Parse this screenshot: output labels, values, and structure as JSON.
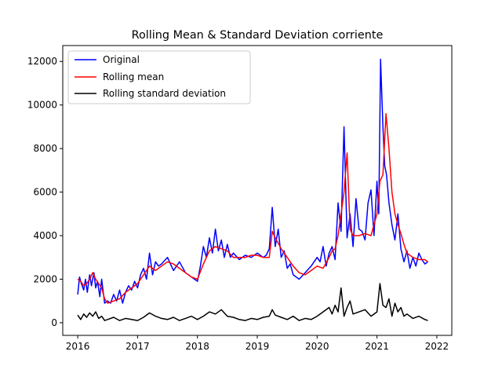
{
  "chart_data": {
    "type": "line",
    "title": "Rolling Mean & Standard Deviation corriente",
    "xlabel": "",
    "ylabel": "",
    "xlim": [
      2015.75,
      2022.25
    ],
    "ylim": [
      -580,
      12730
    ],
    "x_ticks": [
      2016,
      2017,
      2018,
      2019,
      2020,
      2021,
      2022
    ],
    "x_tick_labels": [
      "2016",
      "2017",
      "2018",
      "2019",
      "2020",
      "2021",
      "2022"
    ],
    "y_ticks": [
      0,
      2000,
      4000,
      6000,
      8000,
      10000,
      12000
    ],
    "y_tick_labels": [
      "0",
      "2000",
      "4000",
      "6000",
      "8000",
      "10000",
      "12000"
    ],
    "grid": false,
    "legend_position": "upper-left",
    "colors": {
      "original": "#0000ff",
      "rolling_mean": "#ff0000",
      "rolling_std": "#000000"
    },
    "series": [
      {
        "name": "Original",
        "color": "#0000ff",
        "x": [
          2016.0,
          2016.03,
          2016.06,
          2016.1,
          2016.13,
          2016.16,
          2016.2,
          2016.23,
          2016.27,
          2016.3,
          2016.33,
          2016.37,
          2016.4,
          2016.45,
          2016.5,
          2016.55,
          2016.6,
          2016.65,
          2016.7,
          2016.75,
          2016.8,
          2016.85,
          2016.9,
          2016.95,
          2017.0,
          2017.05,
          2017.1,
          2017.15,
          2017.2,
          2017.25,
          2017.3,
          2017.35,
          2017.4,
          2017.5,
          2017.6,
          2017.7,
          2017.8,
          2017.9,
          2018.0,
          2018.05,
          2018.1,
          2018.15,
          2018.2,
          2018.25,
          2018.3,
          2018.35,
          2018.4,
          2018.45,
          2018.5,
          2018.55,
          2018.6,
          2018.7,
          2018.8,
          2018.9,
          2019.0,
          2019.1,
          2019.15,
          2019.2,
          2019.25,
          2019.3,
          2019.35,
          2019.4,
          2019.45,
          2019.5,
          2019.55,
          2019.6,
          2019.7,
          2019.8,
          2019.9,
          2020.0,
          2020.05,
          2020.1,
          2020.15,
          2020.2,
          2020.25,
          2020.3,
          2020.35,
          2020.4,
          2020.45,
          2020.5,
          2020.55,
          2020.6,
          2020.65,
          2020.7,
          2020.75,
          2020.8,
          2020.85,
          2020.9,
          2020.95,
          2021.0,
          2021.03,
          2021.06,
          2021.1,
          2021.13,
          2021.16,
          2021.2,
          2021.25,
          2021.3,
          2021.35,
          2021.4,
          2021.45,
          2021.5,
          2021.55,
          2021.6,
          2021.65,
          2021.7,
          2021.75,
          2021.8,
          2021.85
        ],
        "values": [
          1300,
          2100,
          1800,
          1500,
          2000,
          1400,
          2200,
          1700,
          2300,
          1600,
          1900,
          1200,
          2000,
          900,
          1000,
          900,
          1300,
          1000,
          1500,
          900,
          1400,
          1700,
          1500,
          1900,
          1600,
          2200,
          2500,
          2000,
          3200,
          2200,
          2800,
          2600,
          2700,
          3000,
          2400,
          2800,
          2300,
          2100,
          1900,
          2600,
          3500,
          3000,
          3900,
          3200,
          4300,
          3300,
          3800,
          3000,
          3600,
          3000,
          3200,
          2900,
          3100,
          3000,
          3200,
          3000,
          3100,
          3400,
          5300,
          3500,
          4300,
          3000,
          3300,
          2500,
          2700,
          2200,
          2000,
          2300,
          2600,
          3000,
          2800,
          3500,
          2600,
          3200,
          3500,
          2900,
          5500,
          4200,
          9000,
          3900,
          5000,
          3500,
          5700,
          4300,
          4200,
          3800,
          5500,
          6100,
          4000,
          6500,
          5000,
          12100,
          9000,
          7200,
          6800,
          5500,
          4500,
          3800,
          5000,
          3400,
          2800,
          3300,
          2500,
          3000,
          2600,
          3200,
          2900,
          2700,
          2800
        ]
      },
      {
        "name": "Rolling mean",
        "color": "#ff0000",
        "x": [
          2016.0,
          2016.05,
          2016.1,
          2016.15,
          2016.2,
          2016.25,
          2016.3,
          2016.35,
          2016.4,
          2016.45,
          2016.5,
          2016.6,
          2016.7,
          2016.8,
          2016.9,
          2017.0,
          2017.1,
          2017.2,
          2017.3,
          2017.4,
          2017.5,
          2017.6,
          2017.7,
          2017.8,
          2017.9,
          2018.0,
          2018.1,
          2018.2,
          2018.3,
          2018.4,
          2018.5,
          2018.6,
          2018.7,
          2018.8,
          2018.9,
          2019.0,
          2019.1,
          2019.2,
          2019.25,
          2019.3,
          2019.4,
          2019.5,
          2019.6,
          2019.7,
          2019.8,
          2019.9,
          2020.0,
          2020.1,
          2020.2,
          2020.25,
          2020.3,
          2020.35,
          2020.4,
          2020.45,
          2020.5,
          2020.55,
          2020.6,
          2020.7,
          2020.8,
          2020.9,
          2021.0,
          2021.05,
          2021.1,
          2021.15,
          2021.2,
          2021.25,
          2021.3,
          2021.35,
          2021.4,
          2021.45,
          2021.5,
          2021.6,
          2021.7,
          2021.8,
          2021.85
        ],
        "values": [
          2000,
          1900,
          1700,
          1800,
          2000,
          2300,
          2000,
          1800,
          1600,
          1100,
          900,
          1000,
          1100,
          1400,
          1600,
          1800,
          2200,
          2600,
          2400,
          2600,
          2800,
          2700,
          2500,
          2300,
          2100,
          2000,
          2700,
          3300,
          3500,
          3400,
          3300,
          3000,
          3000,
          3000,
          3100,
          3100,
          3000,
          3000,
          4200,
          3900,
          3400,
          3000,
          2600,
          2300,
          2200,
          2400,
          2600,
          2500,
          3000,
          3300,
          3400,
          4000,
          5000,
          6000,
          7800,
          4300,
          4000,
          4000,
          4100,
          4000,
          5000,
          6500,
          6800,
          9600,
          8000,
          6000,
          5000,
          4500,
          4100,
          3600,
          3200,
          3000,
          2900,
          2900,
          2800
        ]
      },
      {
        "name": "Rolling standard deviation",
        "color": "#000000",
        "x": [
          2016.0,
          2016.05,
          2016.1,
          2016.15,
          2016.2,
          2016.25,
          2016.3,
          2016.35,
          2016.4,
          2016.45,
          2016.5,
          2016.6,
          2016.7,
          2016.8,
          2016.9,
          2017.0,
          2017.1,
          2017.2,
          2017.3,
          2017.4,
          2017.5,
          2017.6,
          2017.7,
          2017.8,
          2017.9,
          2018.0,
          2018.1,
          2018.2,
          2018.3,
          2018.4,
          2018.5,
          2018.6,
          2018.7,
          2018.8,
          2018.9,
          2019.0,
          2019.1,
          2019.2,
          2019.25,
          2019.3,
          2019.4,
          2019.5,
          2019.6,
          2019.7,
          2019.8,
          2019.9,
          2020.0,
          2020.1,
          2020.2,
          2020.25,
          2020.3,
          2020.35,
          2020.4,
          2020.45,
          2020.5,
          2020.55,
          2020.6,
          2020.7,
          2020.8,
          2020.9,
          2021.0,
          2021.05,
          2021.1,
          2021.15,
          2021.2,
          2021.25,
          2021.3,
          2021.35,
          2021.4,
          2021.45,
          2021.5,
          2021.6,
          2021.7,
          2021.8,
          2021.85
        ],
        "values": [
          350,
          150,
          400,
          250,
          450,
          300,
          500,
          200,
          300,
          100,
          150,
          250,
          100,
          200,
          150,
          100,
          250,
          450,
          300,
          200,
          150,
          250,
          100,
          200,
          300,
          150,
          300,
          500,
          400,
          600,
          300,
          250,
          150,
          100,
          200,
          150,
          250,
          300,
          600,
          350,
          250,
          150,
          300,
          100,
          200,
          150,
          300,
          500,
          700,
          400,
          800,
          500,
          1600,
          300,
          700,
          1000,
          400,
          500,
          600,
          300,
          500,
          1800,
          800,
          700,
          1100,
          300,
          900,
          500,
          700,
          300,
          400,
          200,
          300,
          150,
          100
        ]
      }
    ]
  }
}
